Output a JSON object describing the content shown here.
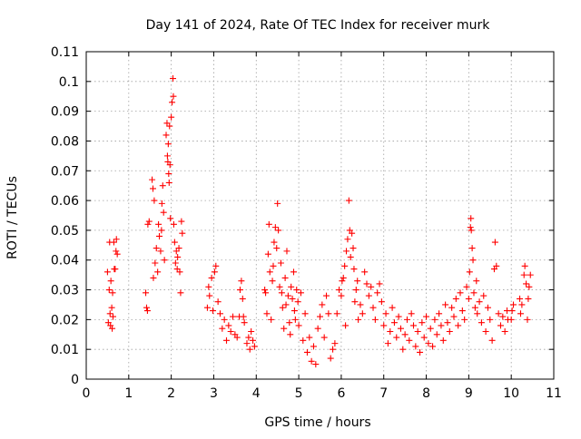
{
  "chart_data": {
    "type": "scatter",
    "title": "Day 141 of 2024, Rate Of TEC Index for receiver murk",
    "xlabel": "GPS time / hours",
    "ylabel": "ROTI / TECUs",
    "xlim": [
      0,
      11
    ],
    "ylim": [
      0,
      0.11
    ],
    "xticks": [
      "0",
      "1",
      "2",
      "3",
      "4",
      "5",
      "6",
      "7",
      "8",
      "9",
      "10",
      "11"
    ],
    "yticks": [
      "0",
      "0.01",
      "0.02",
      "0.03",
      "0.04",
      "0.05",
      "0.06",
      "0.07",
      "0.08",
      "0.09",
      "0.1",
      "0.11"
    ],
    "grid": true,
    "marker": "+",
    "series_color": "#ff0000",
    "series": [
      {
        "name": "ROTI",
        "points": [
          [
            0.5,
            0.036
          ],
          [
            0.52,
            0.019
          ],
          [
            0.54,
            0.03
          ],
          [
            0.55,
            0.046
          ],
          [
            0.56,
            0.022
          ],
          [
            0.57,
            0.018
          ],
          [
            0.58,
            0.033
          ],
          [
            0.6,
            0.024
          ],
          [
            0.61,
            0.017
          ],
          [
            0.62,
            0.029
          ],
          [
            0.63,
            0.021
          ],
          [
            0.65,
            0.046
          ],
          [
            0.66,
            0.037
          ],
          [
            0.68,
            0.037
          ],
          [
            0.7,
            0.043
          ],
          [
            0.71,
            0.047
          ],
          [
            0.73,
            0.042
          ],
          [
            1.4,
            0.029
          ],
          [
            1.42,
            0.024
          ],
          [
            1.44,
            0.023
          ],
          [
            1.45,
            0.052
          ],
          [
            1.48,
            0.053
          ],
          [
            1.55,
            0.067
          ],
          [
            1.57,
            0.064
          ],
          [
            1.6,
            0.06
          ],
          [
            1.58,
            0.034
          ],
          [
            1.62,
            0.039
          ],
          [
            1.65,
            0.044
          ],
          [
            1.68,
            0.036
          ],
          [
            1.7,
            0.052
          ],
          [
            1.72,
            0.048
          ],
          [
            1.75,
            0.043
          ],
          [
            1.77,
            0.05
          ],
          [
            1.78,
            0.059
          ],
          [
            1.8,
            0.065
          ],
          [
            1.82,
            0.056
          ],
          [
            1.84,
            0.04
          ],
          [
            1.88,
            0.082
          ],
          [
            1.9,
            0.086
          ],
          [
            1.91,
            0.075
          ],
          [
            1.92,
            0.073
          ],
          [
            1.93,
            0.079
          ],
          [
            1.94,
            0.069
          ],
          [
            1.95,
            0.066
          ],
          [
            1.96,
            0.085
          ],
          [
            1.97,
            0.072
          ],
          [
            1.98,
            0.054
          ],
          [
            2.0,
            0.088
          ],
          [
            2.02,
            0.093
          ],
          [
            2.04,
            0.101
          ],
          [
            2.05,
            0.095
          ],
          [
            2.06,
            0.052
          ],
          [
            2.08,
            0.046
          ],
          [
            2.1,
            0.039
          ],
          [
            2.12,
            0.043
          ],
          [
            2.14,
            0.037
          ],
          [
            2.15,
            0.041
          ],
          [
            2.18,
            0.044
          ],
          [
            2.2,
            0.036
          ],
          [
            2.22,
            0.029
          ],
          [
            2.24,
            0.053
          ],
          [
            2.26,
            0.049
          ],
          [
            2.85,
            0.024
          ],
          [
            2.88,
            0.031
          ],
          [
            2.9,
            0.028
          ],
          [
            2.95,
            0.034
          ],
          [
            2.98,
            0.023
          ],
          [
            3.02,
            0.036
          ],
          [
            3.05,
            0.038
          ],
          [
            3.1,
            0.026
          ],
          [
            3.15,
            0.022
          ],
          [
            3.2,
            0.017
          ],
          [
            3.25,
            0.02
          ],
          [
            3.3,
            0.013
          ],
          [
            3.35,
            0.018
          ],
          [
            3.4,
            0.016
          ],
          [
            3.45,
            0.021
          ],
          [
            3.5,
            0.015
          ],
          [
            3.55,
            0.014
          ],
          [
            3.6,
            0.021
          ],
          [
            3.62,
            0.03
          ],
          [
            3.65,
            0.033
          ],
          [
            3.68,
            0.027
          ],
          [
            3.7,
            0.021
          ],
          [
            3.72,
            0.019
          ],
          [
            3.78,
            0.012
          ],
          [
            3.82,
            0.014
          ],
          [
            3.85,
            0.01
          ],
          [
            3.88,
            0.016
          ],
          [
            3.92,
            0.013
          ],
          [
            3.96,
            0.011
          ],
          [
            4.2,
            0.03
          ],
          [
            4.22,
            0.029
          ],
          [
            4.25,
            0.022
          ],
          [
            4.28,
            0.042
          ],
          [
            4.3,
            0.052
          ],
          [
            4.32,
            0.036
          ],
          [
            4.35,
            0.02
          ],
          [
            4.38,
            0.033
          ],
          [
            4.4,
            0.038
          ],
          [
            4.42,
            0.046
          ],
          [
            4.45,
            0.051
          ],
          [
            4.48,
            0.044
          ],
          [
            4.5,
            0.059
          ],
          [
            4.52,
            0.05
          ],
          [
            4.55,
            0.031
          ],
          [
            4.58,
            0.039
          ],
          [
            4.6,
            0.029
          ],
          [
            4.62,
            0.024
          ],
          [
            4.65,
            0.017
          ],
          [
            4.68,
            0.034
          ],
          [
            4.7,
            0.025
          ],
          [
            4.72,
            0.043
          ],
          [
            4.75,
            0.028
          ],
          [
            4.78,
            0.019
          ],
          [
            4.8,
            0.015
          ],
          [
            4.82,
            0.031
          ],
          [
            4.85,
            0.027
          ],
          [
            4.88,
            0.036
          ],
          [
            4.9,
            0.023
          ],
          [
            4.92,
            0.02
          ],
          [
            4.95,
            0.03
          ],
          [
            4.98,
            0.026
          ],
          [
            5.0,
            0.018
          ],
          [
            5.05,
            0.029
          ],
          [
            5.1,
            0.013
          ],
          [
            5.15,
            0.022
          ],
          [
            5.2,
            0.009
          ],
          [
            5.25,
            0.014
          ],
          [
            5.3,
            0.006
          ],
          [
            5.35,
            0.011
          ],
          [
            5.4,
            0.005
          ],
          [
            5.45,
            0.017
          ],
          [
            5.5,
            0.021
          ],
          [
            5.55,
            0.025
          ],
          [
            5.6,
            0.014
          ],
          [
            5.65,
            0.028
          ],
          [
            5.7,
            0.022
          ],
          [
            5.75,
            0.007
          ],
          [
            5.8,
            0.01
          ],
          [
            5.85,
            0.012
          ],
          [
            5.9,
            0.022
          ],
          [
            5.95,
            0.03
          ],
          [
            6.0,
            0.028
          ],
          [
            6.02,
            0.033
          ],
          [
            6.05,
            0.034
          ],
          [
            6.08,
            0.038
          ],
          [
            6.1,
            0.018
          ],
          [
            6.12,
            0.043
          ],
          [
            6.15,
            0.047
          ],
          [
            6.18,
            0.06
          ],
          [
            6.2,
            0.05
          ],
          [
            6.22,
            0.041
          ],
          [
            6.25,
            0.049
          ],
          [
            6.28,
            0.044
          ],
          [
            6.3,
            0.037
          ],
          [
            6.32,
            0.026
          ],
          [
            6.35,
            0.03
          ],
          [
            6.38,
            0.033
          ],
          [
            6.4,
            0.02
          ],
          [
            6.45,
            0.025
          ],
          [
            6.5,
            0.022
          ],
          [
            6.55,
            0.036
          ],
          [
            6.6,
            0.032
          ],
          [
            6.65,
            0.028
          ],
          [
            6.7,
            0.031
          ],
          [
            6.75,
            0.024
          ],
          [
            6.8,
            0.02
          ],
          [
            6.85,
            0.029
          ],
          [
            6.9,
            0.032
          ],
          [
            6.95,
            0.026
          ],
          [
            7.0,
            0.018
          ],
          [
            7.05,
            0.022
          ],
          [
            7.1,
            0.012
          ],
          [
            7.15,
            0.016
          ],
          [
            7.2,
            0.024
          ],
          [
            7.25,
            0.019
          ],
          [
            7.3,
            0.014
          ],
          [
            7.35,
            0.021
          ],
          [
            7.4,
            0.017
          ],
          [
            7.45,
            0.01
          ],
          [
            7.5,
            0.015
          ],
          [
            7.55,
            0.02
          ],
          [
            7.6,
            0.013
          ],
          [
            7.65,
            0.022
          ],
          [
            7.7,
            0.018
          ],
          [
            7.75,
            0.011
          ],
          [
            7.8,
            0.016
          ],
          [
            7.85,
            0.009
          ],
          [
            7.9,
            0.019
          ],
          [
            7.95,
            0.014
          ],
          [
            8.0,
            0.021
          ],
          [
            8.05,
            0.012
          ],
          [
            8.1,
            0.017
          ],
          [
            8.15,
            0.011
          ],
          [
            8.2,
            0.02
          ],
          [
            8.25,
            0.015
          ],
          [
            8.3,
            0.022
          ],
          [
            8.35,
            0.018
          ],
          [
            8.4,
            0.013
          ],
          [
            8.45,
            0.025
          ],
          [
            8.5,
            0.019
          ],
          [
            8.55,
            0.016
          ],
          [
            8.6,
            0.024
          ],
          [
            8.65,
            0.021
          ],
          [
            8.7,
            0.027
          ],
          [
            8.75,
            0.018
          ],
          [
            8.8,
            0.029
          ],
          [
            8.85,
            0.023
          ],
          [
            8.9,
            0.02
          ],
          [
            8.95,
            0.031
          ],
          [
            9.0,
            0.027
          ],
          [
            9.02,
            0.036
          ],
          [
            9.04,
            0.051
          ],
          [
            9.05,
            0.054
          ],
          [
            9.06,
            0.05
          ],
          [
            9.08,
            0.044
          ],
          [
            9.1,
            0.04
          ],
          [
            9.12,
            0.029
          ],
          [
            9.15,
            0.024
          ],
          [
            9.18,
            0.033
          ],
          [
            9.2,
            0.022
          ],
          [
            9.25,
            0.026
          ],
          [
            9.3,
            0.019
          ],
          [
            9.35,
            0.028
          ],
          [
            9.4,
            0.016
          ],
          [
            9.45,
            0.024
          ],
          [
            9.5,
            0.02
          ],
          [
            9.55,
            0.013
          ],
          [
            9.6,
            0.037
          ],
          [
            9.62,
            0.046
          ],
          [
            9.65,
            0.038
          ],
          [
            9.7,
            0.022
          ],
          [
            9.75,
            0.018
          ],
          [
            9.8,
            0.021
          ],
          [
            9.85,
            0.016
          ],
          [
            9.9,
            0.023
          ],
          [
            9.92,
            0.02
          ],
          [
            10.0,
            0.02
          ],
          [
            10.02,
            0.023
          ],
          [
            10.05,
            0.025
          ],
          [
            10.2,
            0.027
          ],
          [
            10.22,
            0.022
          ],
          [
            10.25,
            0.025
          ],
          [
            10.3,
            0.035
          ],
          [
            10.32,
            0.038
          ],
          [
            10.35,
            0.032
          ],
          [
            10.38,
            0.02
          ],
          [
            10.4,
            0.027
          ],
          [
            10.42,
            0.031
          ],
          [
            10.45,
            0.035
          ]
        ]
      }
    ]
  }
}
